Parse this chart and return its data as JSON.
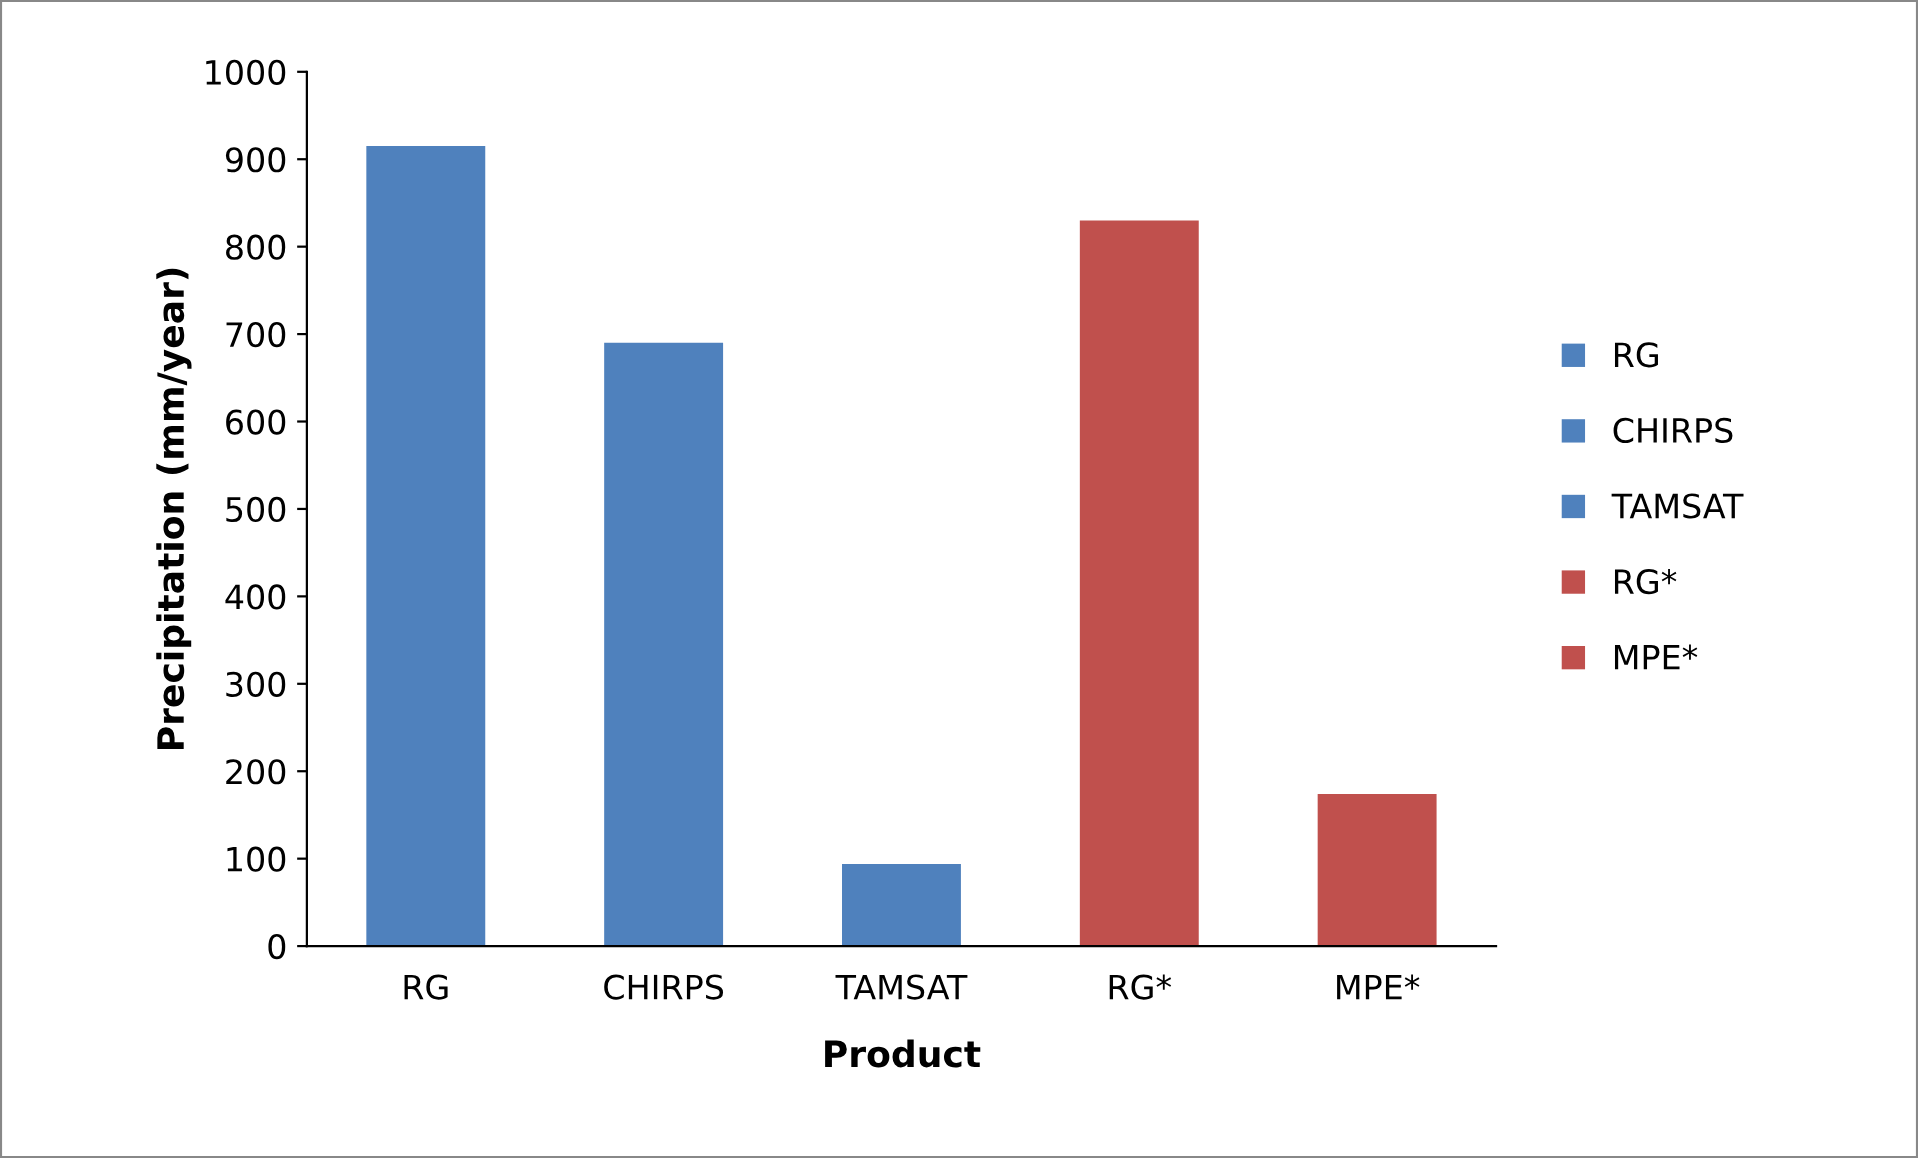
{
  "chart_data": {
    "type": "bar",
    "xlabel": "Product",
    "ylabel": "Precipitation (mm/year)",
    "categories": [
      "RG",
      "CHIRPS",
      "TAMSAT",
      "RG*",
      "MPE*"
    ],
    "series": [
      {
        "name": "RG",
        "color": "#4f81bd",
        "values": [
          915,
          null,
          null,
          null,
          null
        ]
      },
      {
        "name": "CHIRPS",
        "color": "#4f81bd",
        "values": [
          null,
          690,
          null,
          null,
          null
        ]
      },
      {
        "name": "TAMSAT",
        "color": "#4f81bd",
        "values": [
          null,
          null,
          94,
          null,
          null
        ]
      },
      {
        "name": "RG*",
        "color": "#c0504d",
        "values": [
          null,
          null,
          null,
          830,
          null
        ]
      },
      {
        "name": "MPE*",
        "color": "#c0504d",
        "values": [
          null,
          null,
          null,
          null,
          174
        ]
      }
    ],
    "ylim": [
      0,
      1000
    ],
    "yticks": [
      0,
      100,
      200,
      300,
      400,
      500,
      600,
      700,
      800,
      900,
      1000
    ],
    "grid": false,
    "legend": "right"
  }
}
